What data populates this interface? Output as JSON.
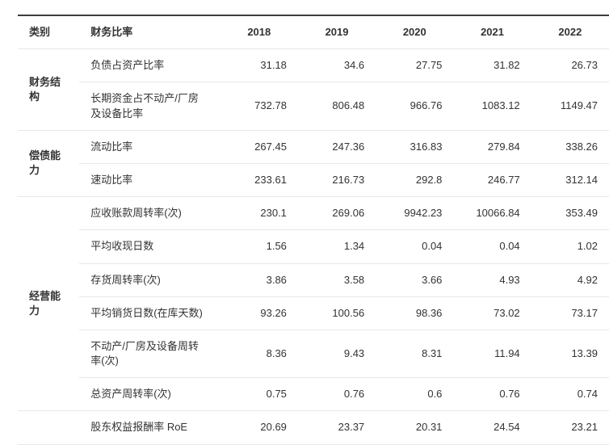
{
  "chart_data": {
    "type": "table",
    "title": "",
    "columns": [
      "类别",
      "财务比率",
      "2018",
      "2019",
      "2020",
      "2021",
      "2022"
    ],
    "groups": [
      {
        "category": "财务结构",
        "rows": [
          {
            "label": "负债占资产比率",
            "values": [
              "31.18",
              "34.6",
              "27.75",
              "31.82",
              "26.73"
            ]
          },
          {
            "label": "长期资金占不动产/厂房及设备比率",
            "values": [
              "732.78",
              "806.48",
              "966.76",
              "1083.12",
              "1149.47"
            ]
          }
        ]
      },
      {
        "category": "偿债能力",
        "rows": [
          {
            "label": "流动比率",
            "values": [
              "267.45",
              "247.36",
              "316.83",
              "279.84",
              "338.26"
            ]
          },
          {
            "label": "速动比率",
            "values": [
              "233.61",
              "216.73",
              "292.8",
              "246.77",
              "312.14"
            ]
          }
        ]
      },
      {
        "category": "经营能力",
        "rows": [
          {
            "label": "应收账款周转率(次)",
            "values": [
              "230.1",
              "269.06",
              "9942.23",
              "10066.84",
              "353.49"
            ]
          },
          {
            "label": "平均收现日数",
            "values": [
              "1.56",
              "1.34",
              "0.04",
              "0.04",
              "1.02"
            ]
          },
          {
            "label": "存货周转率(次)",
            "values": [
              "3.86",
              "3.58",
              "3.66",
              "4.93",
              "4.92"
            ]
          },
          {
            "label": "平均销货日数(在库天数)",
            "values": [
              "93.26",
              "100.56",
              "98.36",
              "73.02",
              "73.17"
            ]
          },
          {
            "label": "不动产/厂房及设备周转率(次)",
            "values": [
              "8.36",
              "9.43",
              "8.31",
              "11.94",
              "13.39"
            ]
          },
          {
            "label": "总资产周转率(次)",
            "values": [
              "0.75",
              "0.76",
              "0.6",
              "0.76",
              "0.74"
            ]
          }
        ]
      },
      {
        "category": "",
        "rows": [
          {
            "label": "股东权益报酬率 RoE",
            "values": [
              "20.69",
              "23.37",
              "20.31",
              "24.54",
              "23.21"
            ]
          }
        ]
      }
    ],
    "layout": {
      "grid": "horizontal-lines-only",
      "number_alignment": "right",
      "category_column_merged": true,
      "border_top_color": "#3d3d3d",
      "row_line_color": "#e8e8e8",
      "text_color": "#333333",
      "last_row_clipped_at_bottom": true
    }
  }
}
